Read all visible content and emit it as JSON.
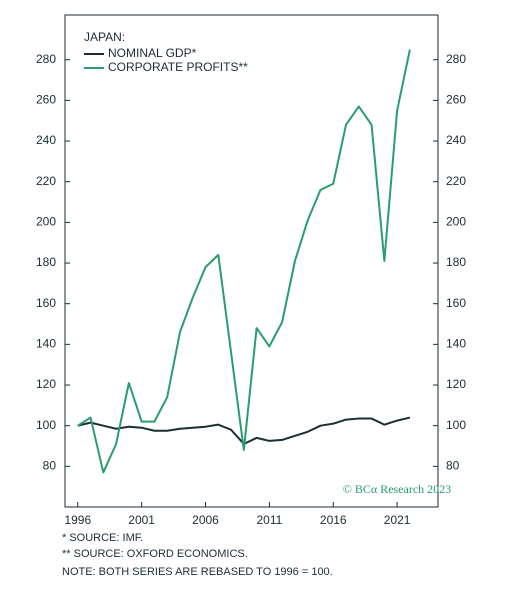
{
  "chart_data": {
    "type": "line",
    "legend_title": "JAPAN:",
    "x": [
      1996,
      1997,
      1998,
      1999,
      2000,
      2001,
      2002,
      2003,
      2004,
      2005,
      2006,
      2007,
      2008,
      2009,
      2010,
      2011,
      2012,
      2013,
      2014,
      2015,
      2016,
      2017,
      2018,
      2019,
      2020,
      2021,
      2022
    ],
    "series": [
      {
        "name": "NOMINAL GDP*",
        "color": "#1a2e35",
        "values": [
          100,
          101.5,
          100,
          98.5,
          99.5,
          99,
          97.5,
          97.5,
          98.5,
          99,
          99.5,
          100.5,
          98,
          91,
          94,
          92.5,
          93,
          95,
          97,
          100,
          101,
          103,
          103.5,
          103.5,
          100.5,
          102.5,
          104
        ]
      },
      {
        "name": "CORPORATE PROFITS**",
        "color": "#2a9d6e",
        "values": [
          100,
          104,
          77,
          91,
          121,
          102,
          102,
          114,
          146,
          163,
          178,
          184,
          136,
          88,
          148,
          139,
          151,
          181,
          201,
          216,
          219,
          248,
          257,
          248,
          181,
          255,
          285
        ]
      }
    ],
    "xlim": [
      1995,
      2024.2
    ],
    "xticks": [
      1996,
      2001,
      2006,
      2011,
      2016,
      2021
    ],
    "ylim": [
      60,
      302
    ],
    "yticks": [
      80,
      100,
      120,
      140,
      160,
      180,
      200,
      220,
      240,
      260,
      280
    ],
    "watermark": "© BCα Research 2023",
    "notes": [
      "*  SOURCE: IMF.",
      "** SOURCE: OXFORD ECONOMICS.",
      "NOTE: BOTH SERIES ARE REBASED TO 1996 = 100."
    ]
  }
}
